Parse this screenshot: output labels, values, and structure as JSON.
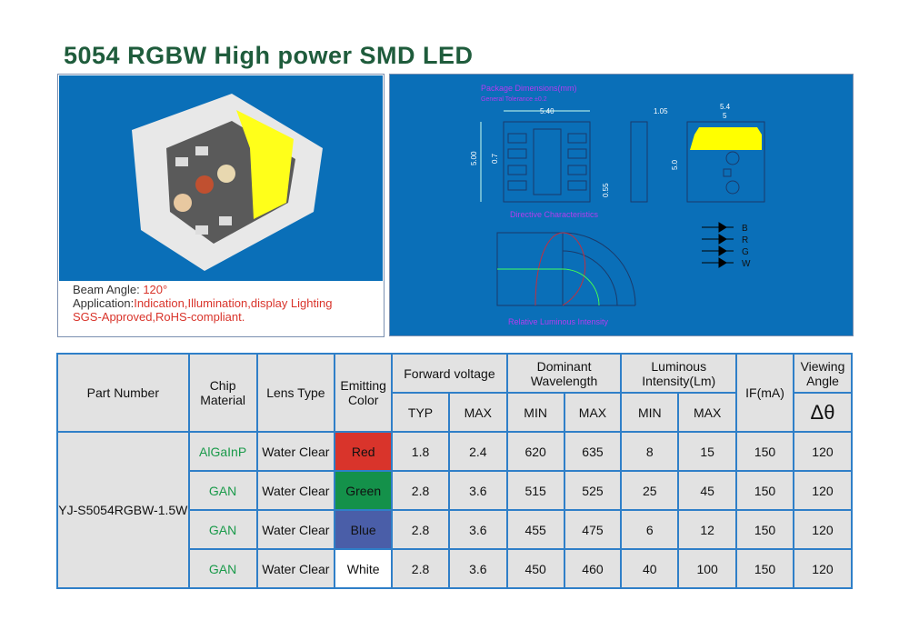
{
  "title": "5054 RGBW High power SMD LED",
  "left_panel": {
    "beam_label": "Beam Angle: ",
    "beam_value": "120°",
    "application_label": "Application:",
    "application_value": "Indication,Illumination,display Lighting",
    "certification": "SGS-Approved,RoHS-compliant."
  },
  "right_panel": {
    "pkg_title": "Package Dimensions(mm)",
    "tolerance": "General Tolerance ±0.2",
    "dims": {
      "width_top": "5.40",
      "height_left": "5.00",
      "pitch": "0.7",
      "pad": "0.55",
      "thickness": "1.05",
      "outer_w": "5.4",
      "inner_w": "5",
      "side_h": "5.0"
    },
    "directive_title": "Directive Characteristics",
    "intensity_label": "Relative Luminous Intensity",
    "pins": [
      "B",
      "R",
      "G",
      "W"
    ]
  },
  "table": {
    "headers": {
      "part": "Part Number",
      "chip": "Chip Material",
      "lens": "Lens Type",
      "color": "Emitting Color",
      "vf": "Forward voltage",
      "wl": "Dominant Wavelength",
      "lum": "Luminous Intensity(Lm)",
      "if": "IF(mA)",
      "angle": "Viewing Angle",
      "typ": "TYP",
      "max": "MAX",
      "min": "MIN",
      "delta": "Δθ"
    },
    "part_number": "YJ-S5054RGBW-1.5W",
    "rows": [
      {
        "chip": "AlGaInP",
        "lens": "Water Clear",
        "color": "Red",
        "color_hex": "#d9342b",
        "vf_typ": "1.8",
        "vf_max": "2.4",
        "wl_min": "620",
        "wl_max": "635",
        "lm_min": "8",
        "lm_max": "15",
        "if": "150",
        "angle": "120"
      },
      {
        "chip": "GAN",
        "lens": "Water Clear",
        "color": "Green",
        "color_hex": "#14914a",
        "vf_typ": "2.8",
        "vf_max": "3.6",
        "wl_min": "515",
        "wl_max": "525",
        "lm_min": "25",
        "lm_max": "45",
        "if": "150",
        "angle": "120"
      },
      {
        "chip": "GAN",
        "lens": "Water Clear",
        "color": "Blue",
        "color_hex": "#4a5ea8",
        "vf_typ": "2.8",
        "vf_max": "3.6",
        "wl_min": "455",
        "wl_max": "475",
        "lm_min": "6",
        "lm_max": "12",
        "if": "150",
        "angle": "120"
      },
      {
        "chip": "GAN",
        "lens": "Water Clear",
        "color": "White",
        "color_hex": "#ffffff",
        "vf_typ": "2.8",
        "vf_max": "3.6",
        "wl_min": "450",
        "wl_max": "460",
        "lm_min": "40",
        "lm_max": "100",
        "if": "150",
        "angle": "120"
      }
    ]
  }
}
